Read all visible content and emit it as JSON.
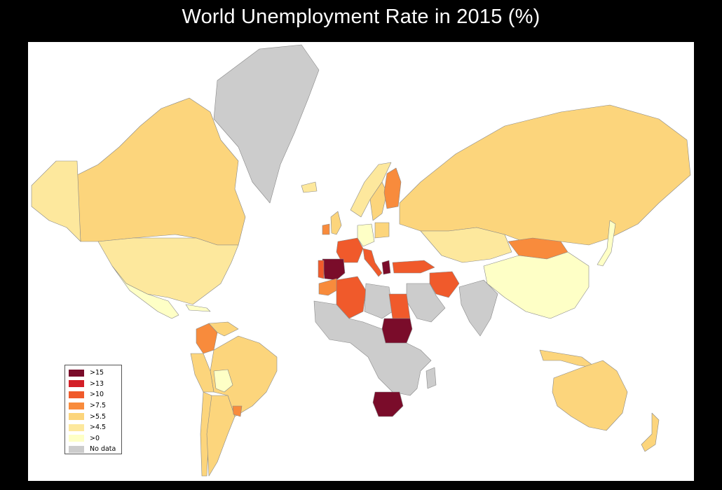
{
  "title": "World Unemployment Rate in 2015 (%)",
  "legend": {
    "items": [
      {
        "label": ">15",
        "color": "#7a0c2a"
      },
      {
        "label": ">13",
        "color": "#d31f27"
      },
      {
        "label": ">10",
        "color": "#f05a2b"
      },
      {
        "label": ">7.5",
        "color": "#f88b3c"
      },
      {
        "label": ">5.5",
        "color": "#fcd57c"
      },
      {
        "label": ">4.5",
        "color": "#fde89d"
      },
      {
        "label": ">0",
        "color": "#feffc6"
      },
      {
        "label": "No data",
        "color": "#cccccc"
      }
    ]
  },
  "map": {
    "projection": "world, Mercator-like",
    "background": "#ffffff",
    "border_color": "#888888",
    "regions": [
      {
        "name": "Greenland",
        "class": "No data"
      },
      {
        "name": "Canada",
        "class": ">5.5"
      },
      {
        "name": "Alaska",
        "class": ">4.5"
      },
      {
        "name": "United States",
        "class": ">4.5"
      },
      {
        "name": "Mexico",
        "class": ">0"
      },
      {
        "name": "Cuba",
        "class": ">0"
      },
      {
        "name": "Colombia",
        "class": ">7.5"
      },
      {
        "name": "Venezuela",
        "class": ">5.5"
      },
      {
        "name": "Brazil",
        "class": ">5.5"
      },
      {
        "name": "Peru",
        "class": ">5.5"
      },
      {
        "name": "Bolivia",
        "class": ">0"
      },
      {
        "name": "Chile",
        "class": ">5.5"
      },
      {
        "name": "Argentina",
        "class": ">5.5"
      },
      {
        "name": "Uruguay",
        "class": ">7.5"
      },
      {
        "name": "Iceland",
        "class": ">4.5"
      },
      {
        "name": "Norway",
        "class": ">4.5"
      },
      {
        "name": "Sweden",
        "class": ">5.5"
      },
      {
        "name": "Finland",
        "class": ">7.5"
      },
      {
        "name": "United Kingdom",
        "class": ">5.5"
      },
      {
        "name": "Ireland",
        "class": ">7.5"
      },
      {
        "name": "France",
        "class": ">10"
      },
      {
        "name": "Spain",
        "class": ">15"
      },
      {
        "name": "Portugal",
        "class": ">10"
      },
      {
        "name": "Italy",
        "class": ">10"
      },
      {
        "name": "Greece",
        "class": ">15"
      },
      {
        "name": "Germany",
        "class": ">0"
      },
      {
        "name": "Poland",
        "class": ">5.5"
      },
      {
        "name": "Russia",
        "class": ">5.5"
      },
      {
        "name": "Kazakhstan",
        "class": ">4.5"
      },
      {
        "name": "Mongolia",
        "class": ">7.5"
      },
      {
        "name": "China",
        "class": ">0"
      },
      {
        "name": "Turkey",
        "class": ">10"
      },
      {
        "name": "Iran",
        "class": ">10"
      },
      {
        "name": "Saudi Arabia",
        "class": "No data"
      },
      {
        "name": "India",
        "class": "No data"
      },
      {
        "name": "Morocco",
        "class": ">7.5"
      },
      {
        "name": "Algeria",
        "class": ">10"
      },
      {
        "name": "Libya",
        "class": "No data"
      },
      {
        "name": "Egypt",
        "class": ">10"
      },
      {
        "name": "Sudan",
        "class": ">15"
      },
      {
        "name": "Nigeria",
        "class": ">7.5"
      },
      {
        "name": "Central Africa",
        "class": "No data"
      },
      {
        "name": "South Africa",
        "class": ">15"
      },
      {
        "name": "Madagascar",
        "class": "No data"
      },
      {
        "name": "Japan",
        "class": ">0"
      },
      {
        "name": "Indonesia",
        "class": ">5.5"
      },
      {
        "name": "Australia",
        "class": ">5.5"
      },
      {
        "name": "New Zealand",
        "class": ">5.5"
      }
    ]
  }
}
